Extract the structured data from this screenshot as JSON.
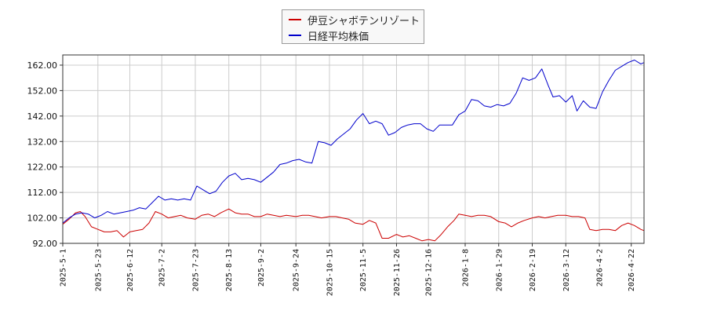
{
  "chart_data": {
    "type": "line",
    "title": "",
    "xlabel": "",
    "ylabel": "",
    "ylim": [
      92,
      166
    ],
    "xlim": [
      "2025-05-01",
      "2026-04-30"
    ],
    "grid": true,
    "legend_position": "top-center",
    "y_ticks": [
      "92.00",
      "102.00",
      "112.00",
      "122.00",
      "132.00",
      "142.00",
      "152.00",
      "162.00"
    ],
    "x_ticks": [
      "2025-5-1",
      "2025-5-23",
      "2025-6-12",
      "2025-7-2",
      "2025-7-23",
      "2025-8-13",
      "2025-9-2",
      "2025-9-24",
      "2025-10-15",
      "2025-11-5",
      "2025-11-26",
      "2025-12-16",
      "2026-1-8",
      "2026-1-29",
      "2026-2-19",
      "2026-3-12",
      "2026-4-2",
      "2026-4-22"
    ],
    "series": [
      {
        "name": "伊豆シャボテンリゾート",
        "color": "#cc0000",
        "points": [
          [
            "2025-05-01",
            99.5
          ],
          [
            "2025-05-05",
            101.5
          ],
          [
            "2025-05-09",
            104.0
          ],
          [
            "2025-05-12",
            104.5
          ],
          [
            "2025-05-15",
            102.5
          ],
          [
            "2025-05-19",
            98.5
          ],
          [
            "2025-05-23",
            97.5
          ],
          [
            "2025-05-27",
            96.5
          ],
          [
            "2025-05-31",
            96.5
          ],
          [
            "2025-06-04",
            97.0
          ],
          [
            "2025-06-08",
            94.5
          ],
          [
            "2025-06-12",
            96.5
          ],
          [
            "2025-06-16",
            97.0
          ],
          [
            "2025-06-20",
            97.5
          ],
          [
            "2025-06-24",
            100.0
          ],
          [
            "2025-06-28",
            104.5
          ],
          [
            "2025-07-02",
            103.5
          ],
          [
            "2025-07-06",
            102.0
          ],
          [
            "2025-07-10",
            102.5
          ],
          [
            "2025-07-14",
            103.0
          ],
          [
            "2025-07-18",
            102.0
          ],
          [
            "2025-07-23",
            101.5
          ],
          [
            "2025-07-27",
            103.0
          ],
          [
            "2025-07-31",
            103.5
          ],
          [
            "2025-08-04",
            102.5
          ],
          [
            "2025-08-08",
            104.0
          ],
          [
            "2025-08-13",
            105.5
          ],
          [
            "2025-08-17",
            104.0
          ],
          [
            "2025-08-21",
            103.5
          ],
          [
            "2025-08-25",
            103.5
          ],
          [
            "2025-08-29",
            102.5
          ],
          [
            "2025-09-02",
            102.5
          ],
          [
            "2025-09-06",
            103.5
          ],
          [
            "2025-09-10",
            103.0
          ],
          [
            "2025-09-14",
            102.5
          ],
          [
            "2025-09-18",
            103.0
          ],
          [
            "2025-09-24",
            102.5
          ],
          [
            "2025-09-28",
            103.0
          ],
          [
            "2025-10-02",
            103.0
          ],
          [
            "2025-10-06",
            102.5
          ],
          [
            "2025-10-10",
            102.0
          ],
          [
            "2025-10-15",
            102.5
          ],
          [
            "2025-10-19",
            102.5
          ],
          [
            "2025-10-23",
            102.0
          ],
          [
            "2025-10-27",
            101.5
          ],
          [
            "2025-10-31",
            100.0
          ],
          [
            "2025-11-05",
            99.5
          ],
          [
            "2025-11-09",
            101.0
          ],
          [
            "2025-11-13",
            100.0
          ],
          [
            "2025-11-17",
            94.0
          ],
          [
            "2025-11-21",
            94.0
          ],
          [
            "2025-11-26",
            95.5
          ],
          [
            "2025-11-30",
            94.5
          ],
          [
            "2025-12-04",
            95.0
          ],
          [
            "2025-12-08",
            94.0
          ],
          [
            "2025-12-12",
            93.0
          ],
          [
            "2025-12-16",
            93.5
          ],
          [
            "2025-12-20",
            93.0
          ],
          [
            "2025-12-24",
            95.5
          ],
          [
            "2025-12-28",
            98.5
          ],
          [
            "2026-01-01",
            101.0
          ],
          [
            "2026-01-04",
            103.5
          ],
          [
            "2026-01-08",
            103.0
          ],
          [
            "2026-01-12",
            102.5
          ],
          [
            "2026-01-16",
            103.0
          ],
          [
            "2026-01-20",
            103.0
          ],
          [
            "2026-01-24",
            102.5
          ],
          [
            "2026-01-29",
            100.5
          ],
          [
            "2026-02-02",
            100.0
          ],
          [
            "2026-02-06",
            98.5
          ],
          [
            "2026-02-10",
            100.0
          ],
          [
            "2026-02-14",
            101.0
          ],
          [
            "2026-02-19",
            102.0
          ],
          [
            "2026-02-23",
            102.5
          ],
          [
            "2026-02-27",
            102.0
          ],
          [
            "2026-03-03",
            102.5
          ],
          [
            "2026-03-07",
            103.0
          ],
          [
            "2026-03-12",
            103.0
          ],
          [
            "2026-03-16",
            102.5
          ],
          [
            "2026-03-20",
            102.5
          ],
          [
            "2026-03-24",
            102.0
          ],
          [
            "2026-03-27",
            97.5
          ],
          [
            "2026-03-31",
            97.0
          ],
          [
            "2026-04-04",
            97.5
          ],
          [
            "2026-04-08",
            97.5
          ],
          [
            "2026-04-12",
            97.0
          ],
          [
            "2026-04-16",
            99.0
          ],
          [
            "2026-04-20",
            100.0
          ],
          [
            "2026-04-24",
            99.0
          ],
          [
            "2026-04-28",
            97.5
          ],
          [
            "2026-04-30",
            97.0
          ]
        ]
      },
      {
        "name": "日経平均株価",
        "color": "#0000cc",
        "points": [
          [
            "2025-05-01",
            100.0
          ],
          [
            "2025-05-05",
            102.0
          ],
          [
            "2025-05-09",
            103.5
          ],
          [
            "2025-05-13",
            104.0
          ],
          [
            "2025-05-17",
            103.5
          ],
          [
            "2025-05-21",
            102.0
          ],
          [
            "2025-05-25",
            103.0
          ],
          [
            "2025-05-29",
            104.5
          ],
          [
            "2025-06-02",
            103.5
          ],
          [
            "2025-06-06",
            104.0
          ],
          [
            "2025-06-10",
            104.5
          ],
          [
            "2025-06-14",
            105.0
          ],
          [
            "2025-06-18",
            106.0
          ],
          [
            "2025-06-22",
            105.5
          ],
          [
            "2025-06-26",
            108.0
          ],
          [
            "2025-06-30",
            110.5
          ],
          [
            "2025-07-04",
            109.0
          ],
          [
            "2025-07-08",
            109.5
          ],
          [
            "2025-07-12",
            109.0
          ],
          [
            "2025-07-16",
            109.5
          ],
          [
            "2025-07-20",
            109.0
          ],
          [
            "2025-07-24",
            114.5
          ],
          [
            "2025-07-28",
            113.0
          ],
          [
            "2025-08-01",
            111.5
          ],
          [
            "2025-08-05",
            112.5
          ],
          [
            "2025-08-09",
            116.0
          ],
          [
            "2025-08-13",
            118.5
          ],
          [
            "2025-08-17",
            119.5
          ],
          [
            "2025-08-21",
            117.0
          ],
          [
            "2025-08-25",
            117.5
          ],
          [
            "2025-08-29",
            117.0
          ],
          [
            "2025-09-02",
            116.0
          ],
          [
            "2025-09-06",
            118.0
          ],
          [
            "2025-09-10",
            120.0
          ],
          [
            "2025-09-14",
            123.0
          ],
          [
            "2025-09-18",
            123.5
          ],
          [
            "2025-09-22",
            124.5
          ],
          [
            "2025-09-26",
            125.0
          ],
          [
            "2025-09-30",
            124.0
          ],
          [
            "2025-10-04",
            123.5
          ],
          [
            "2025-10-08",
            132.0
          ],
          [
            "2025-10-12",
            131.5
          ],
          [
            "2025-10-16",
            130.5
          ],
          [
            "2025-10-20",
            133.0
          ],
          [
            "2025-10-24",
            135.0
          ],
          [
            "2025-10-28",
            137.0
          ],
          [
            "2025-11-01",
            140.5
          ],
          [
            "2025-11-05",
            143.0
          ],
          [
            "2025-11-09",
            139.0
          ],
          [
            "2025-11-13",
            140.0
          ],
          [
            "2025-11-17",
            139.0
          ],
          [
            "2025-11-21",
            134.5
          ],
          [
            "2025-11-25",
            135.5
          ],
          [
            "2025-11-29",
            137.5
          ],
          [
            "2025-12-03",
            138.5
          ],
          [
            "2025-12-07",
            139.0
          ],
          [
            "2025-12-11",
            139.0
          ],
          [
            "2025-12-15",
            137.0
          ],
          [
            "2025-12-19",
            136.0
          ],
          [
            "2025-12-23",
            138.5
          ],
          [
            "2025-12-27",
            138.5
          ],
          [
            "2025-12-31",
            138.5
          ],
          [
            "2026-01-04",
            142.5
          ],
          [
            "2026-01-08",
            144.0
          ],
          [
            "2026-01-12",
            148.5
          ],
          [
            "2026-01-16",
            148.0
          ],
          [
            "2026-01-20",
            146.0
          ],
          [
            "2026-01-24",
            145.5
          ],
          [
            "2026-01-28",
            146.5
          ],
          [
            "2026-02-01",
            146.0
          ],
          [
            "2026-02-05",
            147.0
          ],
          [
            "2026-02-09",
            151.0
          ],
          [
            "2026-02-13",
            157.0
          ],
          [
            "2026-02-17",
            156.0
          ],
          [
            "2026-02-21",
            157.0
          ],
          [
            "2026-02-25",
            160.5
          ],
          [
            "2026-03-01",
            154.0
          ],
          [
            "2026-03-04",
            149.5
          ],
          [
            "2026-03-08",
            150.0
          ],
          [
            "2026-03-12",
            147.5
          ],
          [
            "2026-03-16",
            150.0
          ],
          [
            "2026-03-19",
            144.0
          ],
          [
            "2026-03-23",
            148.0
          ],
          [
            "2026-03-27",
            145.5
          ],
          [
            "2026-03-31",
            145.0
          ],
          [
            "2026-04-04",
            151.5
          ],
          [
            "2026-04-08",
            156.0
          ],
          [
            "2026-04-12",
            160.0
          ],
          [
            "2026-04-16",
            161.5
          ],
          [
            "2026-04-20",
            163.0
          ],
          [
            "2026-04-24",
            164.0
          ],
          [
            "2026-04-28",
            162.5
          ],
          [
            "2026-04-30",
            163.0
          ]
        ]
      }
    ]
  }
}
